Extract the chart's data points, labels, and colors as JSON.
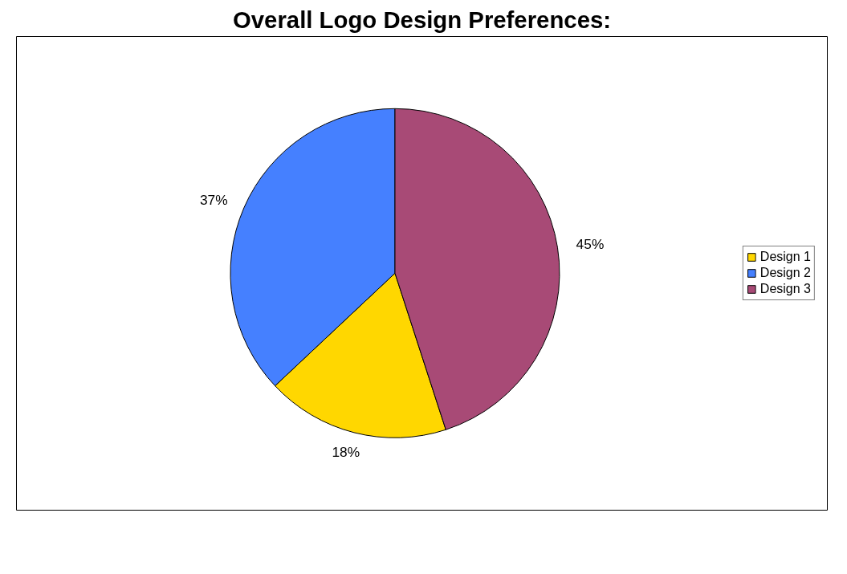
{
  "chart_data": {
    "type": "pie",
    "title": "Overall Logo Design Preferences:",
    "categories": [
      "Design 1",
      "Design 2",
      "Design 3"
    ],
    "values": [
      18,
      37,
      45
    ],
    "colors": [
      "#ffd700",
      "#4580ff",
      "#a84a76"
    ],
    "value_labels": [
      "18%",
      "37%",
      "45%"
    ],
    "legend": "right"
  }
}
